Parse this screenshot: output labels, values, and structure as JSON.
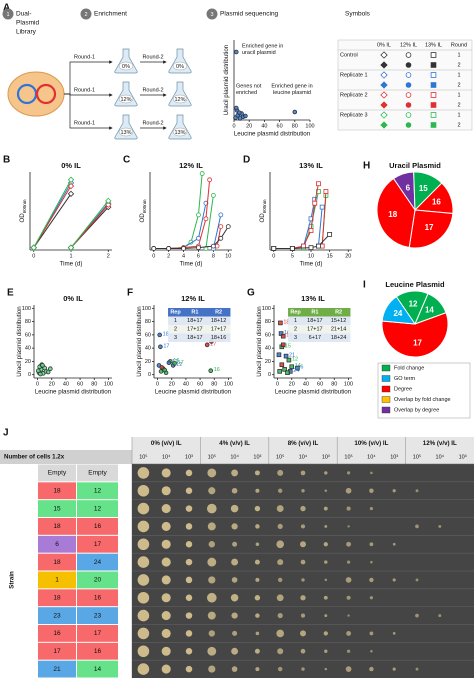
{
  "panel_a": {
    "label": "A",
    "steps": [
      {
        "number": "1",
        "title_lines": [
          "Dual-",
          "Plasmid",
          "Library"
        ]
      },
      {
        "number": "2",
        "title_lines": [
          "Enrichment"
        ]
      },
      {
        "number": "3",
        "title_lines": [
          "Plasmid sequencing"
        ]
      }
    ],
    "rows": [
      {
        "round1": "Round-1",
        "conc": "0%",
        "round2": "Round-2"
      },
      {
        "round1": "Round-1",
        "conc": "12%",
        "round2": "Round-2"
      },
      {
        "round1": "Round-1",
        "conc": "13%",
        "round2": "Round-2"
      }
    ],
    "symbols_title": "Symbols",
    "symbols_table": {
      "header": [
        "0% IL",
        "12% IL",
        "13% IL",
        "Round"
      ],
      "groups": [
        {
          "name": "Control",
          "color": "#333333",
          "rounds": [
            "1",
            "2"
          ]
        },
        {
          "name": "Replicate 1",
          "color": "#2e75d6",
          "rounds": [
            "1",
            "2"
          ]
        },
        {
          "name": "Replicate 2",
          "color": "#e03030",
          "rounds": [
            "1",
            "2"
          ]
        },
        {
          "name": "Replicate 3",
          "color": "#2db84d",
          "rounds": [
            "1",
            "2"
          ]
        }
      ]
    }
  },
  "chart_data": [
    {
      "type": "scatter",
      "x_label": "Leucine plasmid distribution",
      "y_label": "Uracil plasmid distribution",
      "xlim": [
        0,
        100
      ],
      "ylim": [
        0,
        100
      ],
      "xticks": [
        0,
        20,
        40,
        60,
        80,
        100
      ],
      "marker": "circle",
      "series": [
        {
          "color": "#2e75d6",
          "x": [
            3,
            80,
            2,
            5,
            8,
            10,
            12,
            4,
            7,
            15,
            3
          ],
          "values": [
            85,
            10,
            3,
            6,
            2,
            8,
            4,
            12,
            9,
            5,
            15
          ]
        }
      ],
      "annotations": [
        [
          "Enriched gene in",
          "uracil plasmid"
        ],
        [
          "Genes not",
          "enriched"
        ],
        [
          "Enriched gene in",
          "leucine plasmid"
        ]
      ]
    },
    {
      "type": "line",
      "label": "B",
      "title": "0% IL",
      "x_label": "Time (d)",
      "y_label": "OD",
      "y_label_sub": "600nm",
      "xlim": [
        -0.1,
        2.1
      ],
      "ylim": [
        0,
        1
      ],
      "xticks": [
        0,
        1,
        2
      ],
      "marker": "diamond",
      "series": [
        {
          "color": "#333333",
          "x": [
            0,
            1,
            null,
            1,
            2
          ],
          "values": [
            0.03,
            0.72,
            null,
            0.03,
            0.55
          ]
        },
        {
          "color": "#2e75d6",
          "x": [
            0,
            1,
            null,
            1,
            2
          ],
          "values": [
            0.03,
            0.86,
            null,
            0.03,
            0.6
          ]
        },
        {
          "color": "#e03030",
          "x": [
            0,
            1,
            null,
            1,
            2
          ],
          "values": [
            0.03,
            0.82,
            null,
            0.03,
            0.58
          ]
        },
        {
          "color": "#2db84d",
          "x": [
            0,
            1,
            null,
            1,
            2
          ],
          "values": [
            0.03,
            0.9,
            null,
            0.03,
            0.63
          ]
        }
      ]
    },
    {
      "type": "line",
      "label": "C",
      "title": "12% IL",
      "x_label": "Time (d)",
      "y_label": "OD",
      "y_label_sub": "600nm",
      "xlim": [
        -0.5,
        10.5
      ],
      "ylim": [
        0,
        1
      ],
      "xticks": [
        0,
        2,
        4,
        6,
        8,
        10
      ],
      "marker": "circle",
      "series": [
        {
          "color": "#2db84d",
          "x": [
            0,
            2,
            4,
            5,
            6,
            6.5,
            null,
            7,
            8
          ],
          "values": [
            0.02,
            0.02,
            0.03,
            0.1,
            0.45,
            0.98,
            null,
            0.02,
            0.7
          ]
        },
        {
          "color": "#2e75d6",
          "x": [
            0,
            2,
            4,
            6,
            7,
            null,
            8,
            9
          ],
          "values": [
            0.02,
            0.02,
            0.03,
            0.15,
            0.6,
            null,
            0.02,
            0.45
          ]
        },
        {
          "color": "#e03030",
          "x": [
            0,
            2,
            4,
            6,
            7,
            7.5,
            null,
            8.5,
            9
          ],
          "values": [
            0.02,
            0.02,
            0.03,
            0.05,
            0.4,
            0.9,
            null,
            0.05,
            0.3
          ]
        },
        {
          "color": "#333333",
          "x": [
            0,
            2,
            4,
            6,
            8,
            9,
            10
          ],
          "values": [
            0.02,
            0.02,
            0.02,
            0.03,
            0.05,
            0.15,
            0.3
          ]
        }
      ]
    },
    {
      "type": "line",
      "label": "D",
      "title": "13% IL",
      "x_label": "Time (d)",
      "y_label": "OD",
      "y_label_sub": "600nm",
      "xlim": [
        -1,
        21
      ],
      "ylim": [
        0,
        1
      ],
      "xticks": [
        0,
        5,
        10,
        15,
        20
      ],
      "marker": "square",
      "series": [
        {
          "color": "#2db84d",
          "x": [
            0,
            5,
            8,
            10,
            12,
            null,
            13,
            14
          ],
          "values": [
            0.02,
            0.02,
            0.03,
            0.3,
            0.75,
            null,
            0.05,
            0.7
          ]
        },
        {
          "color": "#2e75d6",
          "x": [
            0,
            5,
            8,
            10,
            11,
            null,
            12,
            13
          ],
          "values": [
            0.02,
            0.02,
            0.05,
            0.4,
            0.65,
            null,
            0.05,
            0.55
          ]
        },
        {
          "color": "#e03030",
          "x": [
            0,
            5,
            8,
            10,
            11,
            12,
            null,
            13,
            14
          ],
          "values": [
            0.02,
            0.02,
            0.05,
            0.25,
            0.6,
            0.85,
            null,
            0.05,
            0.75
          ]
        },
        {
          "color": "#333333",
          "x": [
            0,
            5,
            10,
            12,
            15
          ],
          "values": [
            0.02,
            0.02,
            0.03,
            0.05,
            0.2
          ]
        }
      ]
    },
    {
      "type": "scatter",
      "label": "E",
      "title": "0% IL",
      "x_label": "Leucine plasmid distribution",
      "y_label": "Uracil plasmid distribution",
      "xlim": [
        -5,
        105
      ],
      "ylim": [
        -5,
        105
      ],
      "xticks": [
        0,
        20,
        40,
        60,
        80,
        100
      ],
      "yticks": [
        0,
        20,
        40,
        60,
        80,
        100
      ],
      "marker": "circle",
      "series": [
        {
          "color": "#5fd98a",
          "x": [
            2,
            5,
            8,
            12,
            3,
            6,
            15,
            10,
            1,
            18,
            4,
            7
          ],
          "values": [
            3,
            8,
            2,
            5,
            12,
            15,
            4,
            10,
            6,
            9,
            1,
            14
          ]
        }
      ]
    },
    {
      "type": "scatter",
      "label": "F",
      "title": "12% IL",
      "x_label": "Leucine plasmid distribution",
      "y_label": "Uracil plasmid distribution",
      "xlim": [
        -5,
        105
      ],
      "ylim": [
        -5,
        105
      ],
      "xticks": [
        0,
        20,
        40,
        60,
        80,
        100
      ],
      "yticks": [
        0,
        20,
        40,
        60,
        80,
        100
      ],
      "marker": "circle",
      "series": [
        {
          "x": [
            3,
            4,
            18,
            16,
            70,
            76,
            22,
            24,
            75,
            5,
            8,
            2,
            12,
            6,
            10
          ],
          "values": [
            60,
            42,
            20,
            18,
            45,
            50,
            14,
            17,
            6,
            5,
            9,
            14,
            3,
            11,
            7
          ],
          "labels": [
            "18",
            "17",
            "16",
            "12",
            "17",
            "18",
            "12",
            "17",
            "16",
            null,
            null,
            null,
            null,
            null,
            null
          ],
          "colors": [
            "#2e75d6",
            "#2e75d6",
            "#2db84d",
            "#2e75d6",
            "#e03030",
            "#e03030",
            "#2e75d6",
            "#2db84d",
            "#2db84d",
            "#2db84d",
            "#2db84d",
            "#2e75d6",
            "#2db84d",
            "#e03030",
            "#2db84d"
          ]
        }
      ],
      "table": {
        "color": "#4472c4",
        "header": [
          "Rep",
          "R1",
          "R2"
        ],
        "rows": [
          [
            "1",
            "18+17",
            "18+12"
          ],
          [
            "2",
            "17+17",
            "17+17"
          ],
          [
            "3",
            "18+17",
            "18+16"
          ]
        ]
      }
    },
    {
      "type": "scatter",
      "label": "G",
      "title": "13% IL",
      "x_label": "Leucine plasmid distribution",
      "y_label": "Uracil plasmid distribution",
      "xlim": [
        -5,
        105
      ],
      "ylim": [
        -5,
        105
      ],
      "xticks": [
        0,
        20,
        40,
        60,
        80,
        100
      ],
      "yticks": [
        0,
        20,
        40,
        60,
        80,
        100
      ],
      "marker": "square",
      "series": [
        {
          "x": [
            4,
            5,
            8,
            6,
            12,
            16,
            20,
            28,
            18,
            3,
            6,
            10,
            2,
            14,
            8
          ],
          "values": [
            78,
            62,
            58,
            42,
            28,
            22,
            12,
            10,
            5,
            5,
            15,
            8,
            30,
            3,
            45
          ],
          "labels": [
            "18",
            "16",
            "17",
            "15",
            "21",
            "12",
            "14",
            "6",
            "24",
            null,
            null,
            null,
            null,
            null,
            null
          ],
          "colors": [
            "#e03030",
            "#2e75d6",
            "#e03030",
            "#2db84d",
            "#2e75d6",
            "#2db84d",
            "#2db84d",
            "#2e75d6",
            "#2e75d6",
            "#2db84d",
            "#e03030",
            "#2db84d",
            "#2e75d6",
            "#2db84d",
            "#e03030"
          ]
        }
      ],
      "table": {
        "color": "#70ad47",
        "header": [
          "Rep",
          "R1",
          "R2"
        ],
        "rows": [
          [
            "1",
            "18+17",
            "15+12"
          ],
          [
            "2",
            "17+17",
            "21+14"
          ],
          [
            "3",
            "6+17",
            "18+24"
          ]
        ]
      }
    },
    {
      "type": "pie",
      "label": "H",
      "title": "Uracil Plasmid",
      "categories": [
        "6",
        "15",
        "16",
        "17",
        "18"
      ],
      "values": [
        9,
        13,
        14,
        26,
        38
      ],
      "colors": [
        "#7030a0",
        "#00b050",
        "#ff0000",
        "#ff0000",
        "#ff0000"
      ]
    },
    {
      "type": "pie",
      "label": "I",
      "title": "Leucine Plasmid",
      "categories": [
        "12",
        "14",
        "17",
        "24"
      ],
      "values": [
        16,
        13,
        57,
        14
      ],
      "colors": [
        "#00b050",
        "#00b050",
        "#ff0000",
        "#00b0f0"
      ]
    }
  ],
  "pie_legend": [
    {
      "name": "Fold change",
      "color": "#00b050"
    },
    {
      "name": "GO term",
      "color": "#00b0f0"
    },
    {
      "name": "Degree",
      "color": "#ff0000"
    },
    {
      "name": "Overlap by fold change",
      "color": "#ffc000"
    },
    {
      "name": "Overlap by degree",
      "color": "#7030a0"
    }
  ],
  "panel_j": {
    "label": "J",
    "cells_label": "Number of cells 1.2x",
    "axis_label": "Strain",
    "conditions": [
      "0% (v/v) IL",
      "4% (v/v) IL",
      "8% (v/v) IL",
      "10% (v/v) IL",
      "12% (v/v) IL"
    ],
    "dilutions": [
      "10⁵",
      "10⁴",
      "10³"
    ],
    "rows": [
      {
        "left": "Empty",
        "left_color": "#d9d9d9",
        "right": "Empty",
        "right_color": "#d9d9d9"
      },
      {
        "left": "18",
        "left_color": "#f8696b",
        "right": "12",
        "right_color": "#66e38a"
      },
      {
        "left": "15",
        "left_color": "#66e38a",
        "right": "12",
        "right_color": "#66e38a"
      },
      {
        "left": "18",
        "left_color": "#f8696b",
        "right": "16",
        "right_color": "#f8696b"
      },
      {
        "left": "6",
        "left_color": "#a77bd6",
        "right": "17",
        "right_color": "#f8696b"
      },
      {
        "left": "18",
        "left_color": "#f8696b",
        "right": "24",
        "right_color": "#5aa7e6"
      },
      {
        "left": "1",
        "left_color": "#f5c000",
        "right": "20",
        "right_color": "#66e38a"
      },
      {
        "left": "18",
        "left_color": "#f8696b",
        "right": "16",
        "right_color": "#f8696b"
      },
      {
        "left": "23",
        "left_color": "#5aa7e6",
        "right": "23",
        "right_color": "#5aa7e6"
      },
      {
        "left": "16",
        "left_color": "#f8696b",
        "right": "17",
        "right_color": "#f8696b"
      },
      {
        "left": "17",
        "left_color": "#f8696b",
        "right": "16",
        "right_color": "#f8696b"
      },
      {
        "left": "21",
        "left_color": "#5aa7e6",
        "right": "14",
        "right_color": "#66e38a"
      }
    ]
  }
}
